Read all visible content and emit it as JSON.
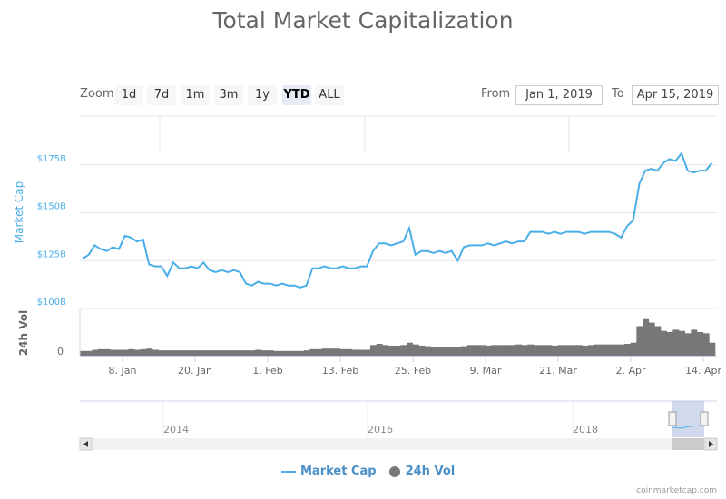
{
  "title": "Total Market Capitalization",
  "range_selector": {
    "zoom_label": "Zoom",
    "buttons": [
      "1d",
      "7d",
      "1m",
      "3m",
      "1y",
      "YTD",
      "ALL"
    ],
    "selected": "YTD",
    "from_label": "From",
    "from_value": "Jan 1, 2019",
    "to_label": "To",
    "to_value": "Apr 15, 2019"
  },
  "legend": {
    "market_cap": "Market Cap",
    "vol": "24h Vol"
  },
  "credit": "coinmarketcap.com",
  "chart_data": {
    "type": "line",
    "title": "Total Market Capitalization",
    "x_ticks": [
      "8. Jan",
      "20. Jan",
      "1. Feb",
      "13. Feb",
      "25. Feb",
      "9. Mar",
      "21. Mar",
      "2. Apr",
      "14. Apr"
    ],
    "navigator_ticks": [
      "2014",
      "2016",
      "2018"
    ],
    "colors": {
      "market_cap": "#4aaee8",
      "vol": "#777777"
    },
    "grid": true,
    "series": [
      {
        "name": "Market Cap",
        "axis_label": "Market Cap",
        "y_ticks": [
          "$100B",
          "$125B",
          "$150B",
          "$175B"
        ],
        "ylim": [
          100,
          190
        ],
        "unit": "$B",
        "x": [
          "2019-01-01",
          "2019-01-02",
          "2019-01-03",
          "2019-01-04",
          "2019-01-05",
          "2019-01-06",
          "2019-01-07",
          "2019-01-08",
          "2019-01-09",
          "2019-01-10",
          "2019-01-11",
          "2019-01-12",
          "2019-01-13",
          "2019-01-14",
          "2019-01-15",
          "2019-01-16",
          "2019-01-17",
          "2019-01-18",
          "2019-01-19",
          "2019-01-20",
          "2019-01-21",
          "2019-01-22",
          "2019-01-23",
          "2019-01-24",
          "2019-01-25",
          "2019-01-26",
          "2019-01-27",
          "2019-01-28",
          "2019-01-29",
          "2019-01-30",
          "2019-01-31",
          "2019-02-01",
          "2019-02-02",
          "2019-02-03",
          "2019-02-04",
          "2019-02-05",
          "2019-02-06",
          "2019-02-07",
          "2019-02-08",
          "2019-02-09",
          "2019-02-10",
          "2019-02-11",
          "2019-02-12",
          "2019-02-13",
          "2019-02-14",
          "2019-02-15",
          "2019-02-16",
          "2019-02-17",
          "2019-02-18",
          "2019-02-19",
          "2019-02-20",
          "2019-02-21",
          "2019-02-22",
          "2019-02-23",
          "2019-02-24",
          "2019-02-25",
          "2019-02-26",
          "2019-02-27",
          "2019-02-28",
          "2019-03-01",
          "2019-03-02",
          "2019-03-03",
          "2019-03-04",
          "2019-03-05",
          "2019-03-06",
          "2019-03-07",
          "2019-03-08",
          "2019-03-09",
          "2019-03-10",
          "2019-03-11",
          "2019-03-12",
          "2019-03-13",
          "2019-03-14",
          "2019-03-15",
          "2019-03-16",
          "2019-03-17",
          "2019-03-18",
          "2019-03-19",
          "2019-03-20",
          "2019-03-21",
          "2019-03-22",
          "2019-03-23",
          "2019-03-24",
          "2019-03-25",
          "2019-03-26",
          "2019-03-27",
          "2019-03-28",
          "2019-03-29",
          "2019-03-30",
          "2019-03-31",
          "2019-04-01",
          "2019-04-02",
          "2019-04-03",
          "2019-04-04",
          "2019-04-05",
          "2019-04-06",
          "2019-04-07",
          "2019-04-08",
          "2019-04-09",
          "2019-04-10",
          "2019-04-11",
          "2019-04-12",
          "2019-04-13",
          "2019-04-14",
          "2019-04-15"
        ],
        "values": [
          126,
          128,
          133,
          131,
          130,
          132,
          131,
          138,
          137,
          135,
          136,
          123,
          122,
          122,
          117,
          124,
          121,
          121,
          122,
          121,
          124,
          120,
          119,
          120,
          119,
          120,
          119,
          113,
          112,
          114,
          113,
          113,
          112,
          113,
          112,
          112,
          111,
          112,
          121,
          121,
          122,
          121,
          121,
          122,
          121,
          121,
          122,
          122,
          130,
          134,
          134,
          133,
          134,
          135,
          142,
          128,
          130,
          130,
          129,
          130,
          129,
          130,
          125,
          132,
          133,
          133,
          133,
          134,
          133,
          134,
          135,
          134,
          135,
          135,
          140,
          140,
          140,
          139,
          140,
          139,
          140,
          140,
          140,
          139,
          140,
          140,
          140,
          140,
          139,
          137,
          143,
          146,
          165,
          172,
          173,
          172,
          176,
          178,
          177,
          181,
          172,
          171,
          172,
          172,
          176
        ]
      },
      {
        "name": "24h Vol",
        "axis_label": "24h Vol",
        "y_ticks": [
          "0"
        ],
        "ylim": [
          0,
          80
        ],
        "unit": "$B",
        "values": [
          8,
          8,
          10,
          11,
          11,
          10,
          10,
          10,
          11,
          10,
          11,
          12,
          10,
          9,
          9,
          9,
          9,
          9,
          9,
          9,
          9,
          9,
          9,
          9,
          9,
          9,
          9,
          9,
          9,
          10,
          9,
          9,
          8,
          8,
          8,
          8,
          8,
          9,
          11,
          11,
          12,
          12,
          12,
          11,
          11,
          10,
          10,
          10,
          18,
          20,
          18,
          17,
          17,
          18,
          22,
          19,
          17,
          16,
          15,
          15,
          15,
          15,
          15,
          16,
          18,
          18,
          18,
          17,
          18,
          18,
          18,
          18,
          19,
          18,
          19,
          18,
          18,
          18,
          17,
          18,
          18,
          18,
          18,
          17,
          18,
          19,
          19,
          19,
          19,
          19,
          20,
          22,
          50,
          62,
          56,
          50,
          42,
          40,
          44,
          42,
          38,
          44,
          40,
          38,
          22
        ]
      }
    ]
  }
}
